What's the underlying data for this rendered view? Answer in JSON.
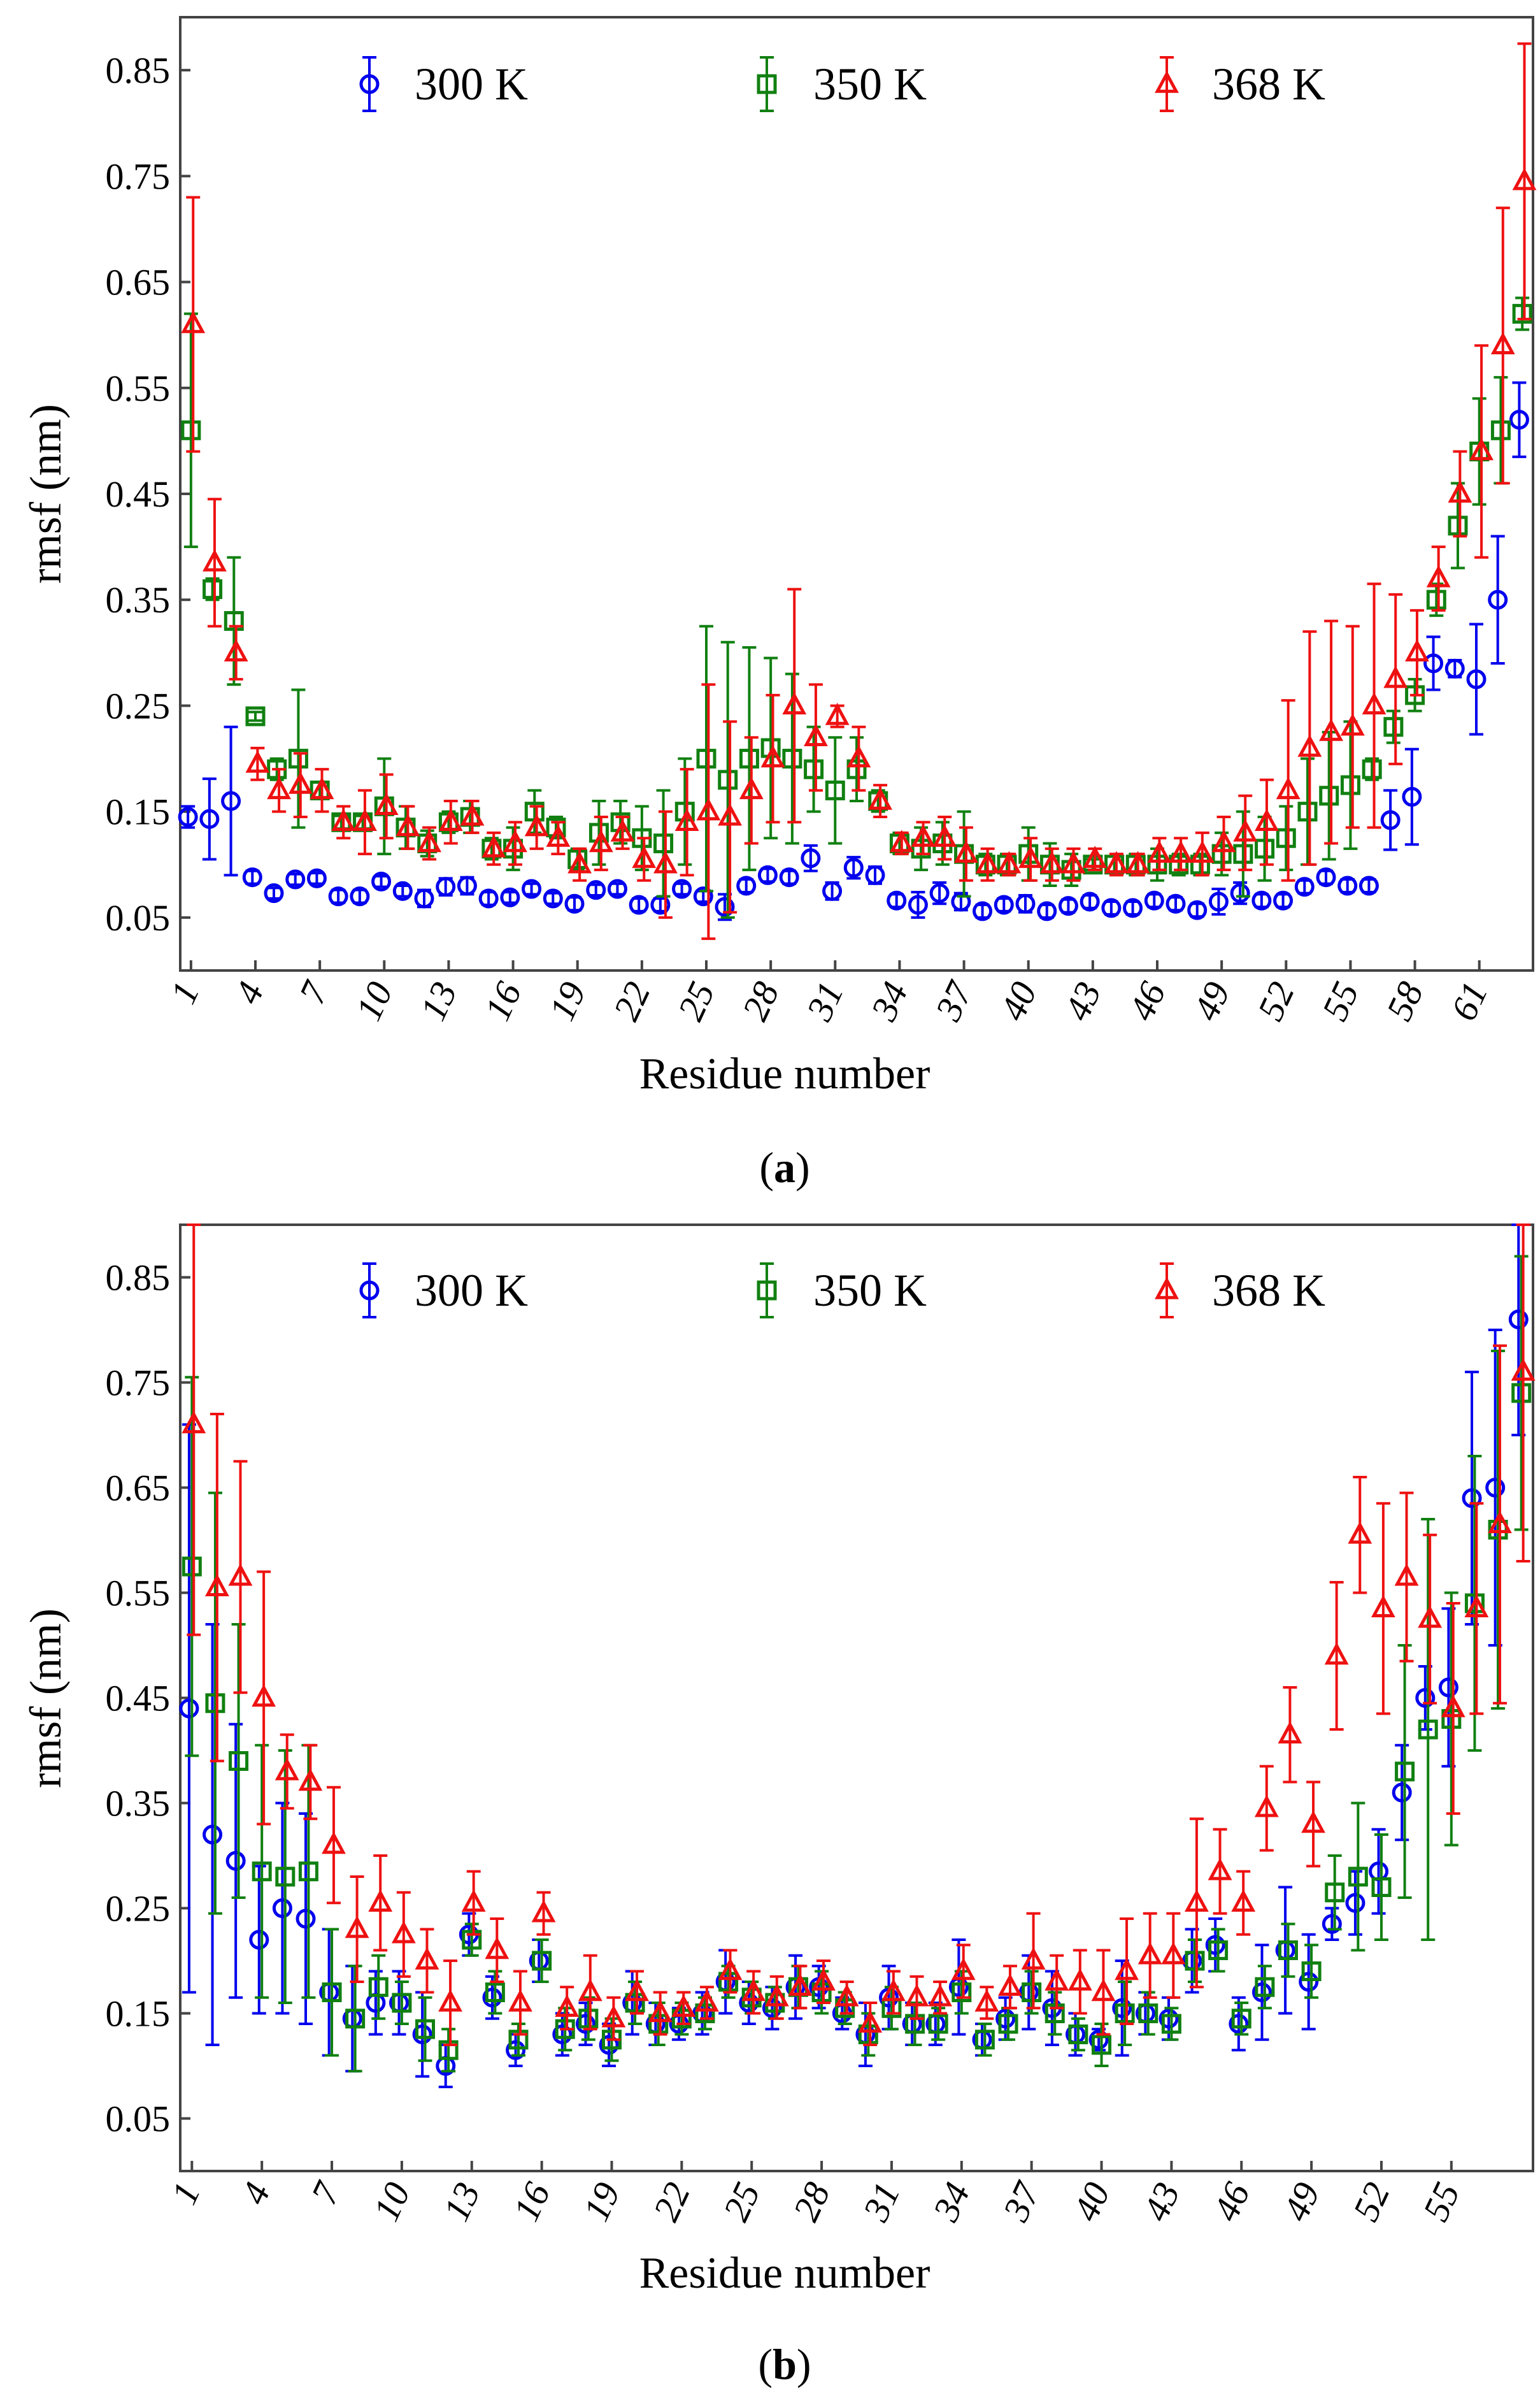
{
  "colors": {
    "s300": "#0000ee",
    "s350": "#118011",
    "s368": "#ee1111",
    "axis": "#444444"
  },
  "chart_data": [
    {
      "type": "scatter",
      "panel_label": {
        "open": "(",
        "letter": "a",
        "close": ")"
      },
      "xlabel": "Residue number",
      "ylabel": "rmsf (nm)",
      "ylim": [
        0.0,
        0.9
      ],
      "xlim": [
        0.5,
        63.5
      ],
      "ytick_values": [
        0.05,
        0.15,
        0.25,
        0.35,
        0.45,
        0.55,
        0.65,
        0.75,
        0.85
      ],
      "ytick_labels": [
        "0.05",
        "0.15",
        "0.25",
        "0.35",
        "0.45",
        "0.55",
        "0.65",
        "0.75",
        "0.85"
      ],
      "xtick_values": [
        1,
        4,
        7,
        10,
        13,
        16,
        19,
        22,
        25,
        28,
        31,
        34,
        37,
        40,
        43,
        46,
        49,
        52,
        55,
        58,
        61
      ],
      "xtick_labels": [
        "1",
        "4",
        "7",
        "10",
        "13",
        "16",
        "19",
        "22",
        "25",
        "28",
        "31",
        "34",
        "37",
        "40",
        "43",
        "46",
        "49",
        "52",
        "55",
        "58",
        "61"
      ],
      "legend_position": "top",
      "series": [
        {
          "name": "300 K",
          "marker": "circle",
          "color_key": "s300",
          "values": [
            0.145,
            0.143,
            0.16,
            0.088,
            0.073,
            0.086,
            0.087,
            0.07,
            0.07,
            0.084,
            0.075,
            0.068,
            0.079,
            0.08,
            0.068,
            0.069,
            0.077,
            0.068,
            0.063,
            0.076,
            0.077,
            0.062,
            0.062,
            0.077,
            0.07,
            0.06,
            0.08,
            0.09,
            0.088,
            0.106,
            0.075,
            0.097,
            0.09,
            0.066,
            0.062,
            0.073,
            0.065,
            0.056,
            0.062,
            0.063,
            0.056,
            0.061,
            0.065,
            0.059,
            0.059,
            0.066,
            0.063,
            0.057,
            0.065,
            0.073,
            0.066,
            0.066,
            0.079,
            0.088,
            0.08,
            0.08,
            0.142,
            0.164,
            0.29,
            0.285,
            0.275,
            0.35,
            0.52
          ],
          "errors": [
            0.01,
            0.038,
            0.07,
            0.006,
            0.005,
            0.005,
            0.005,
            0.006,
            0.006,
            0.005,
            0.005,
            0.008,
            0.008,
            0.008,
            0.006,
            0.005,
            0.005,
            0.005,
            0.006,
            0.005,
            0.005,
            0.006,
            0.006,
            0.005,
            0.005,
            0.012,
            0.006,
            0.006,
            0.006,
            0.012,
            0.008,
            0.01,
            0.008,
            0.006,
            0.012,
            0.01,
            0.008,
            0.006,
            0.006,
            0.008,
            0.006,
            0.006,
            0.006,
            0.006,
            0.006,
            0.006,
            0.006,
            0.006,
            0.012,
            0.01,
            0.006,
            0.006,
            0.006,
            0.006,
            0.006,
            0.006,
            0.028,
            0.045,
            0.025,
            0.008,
            0.052,
            0.06,
            0.035
          ]
        },
        {
          "name": "350 K",
          "marker": "square",
          "color_key": "s350",
          "values": [
            0.51,
            0.36,
            0.33,
            0.24,
            0.19,
            0.2,
            0.17,
            0.14,
            0.14,
            0.155,
            0.135,
            0.12,
            0.14,
            0.145,
            0.115,
            0.115,
            0.15,
            0.135,
            0.105,
            0.13,
            0.14,
            0.125,
            0.12,
            0.15,
            0.2,
            0.18,
            0.2,
            0.21,
            0.2,
            0.19,
            0.17,
            0.19,
            0.16,
            0.12,
            0.115,
            0.12,
            0.11,
            0.1,
            0.1,
            0.11,
            0.1,
            0.095,
            0.1,
            0.1,
            0.1,
            0.1,
            0.1,
            0.1,
            0.11,
            0.11,
            0.115,
            0.125,
            0.15,
            0.165,
            0.175,
            0.19,
            0.23,
            0.26,
            0.35,
            0.42,
            0.49,
            0.51,
            0.62
          ],
          "errors": [
            0.11,
            0.01,
            0.06,
            0.004,
            0.01,
            0.065,
            0.008,
            0.006,
            0.006,
            0.045,
            0.02,
            0.012,
            0.01,
            0.015,
            0.01,
            0.02,
            0.02,
            0.01,
            0.01,
            0.03,
            0.02,
            0.03,
            0.05,
            0.05,
            0.125,
            0.13,
            0.105,
            0.085,
            0.08,
            0.04,
            0.05,
            0.03,
            0.01,
            0.01,
            0.02,
            0.02,
            0.04,
            0.01,
            0.01,
            0.025,
            0.02,
            0.015,
            0.005,
            0.008,
            0.01,
            0.015,
            0.01,
            0.01,
            0.02,
            0.04,
            0.03,
            0.03,
            0.05,
            0.06,
            0.06,
            0.01,
            0.015,
            0.015,
            0.015,
            0.04,
            0.05,
            0.05,
            0.015
          ]
        },
        {
          "name": "368 K",
          "marker": "triangle",
          "color_key": "s368",
          "values": [
            0.61,
            0.385,
            0.3,
            0.195,
            0.17,
            0.175,
            0.17,
            0.14,
            0.14,
            0.155,
            0.135,
            0.12,
            0.14,
            0.145,
            0.115,
            0.12,
            0.135,
            0.125,
            0.1,
            0.12,
            0.13,
            0.105,
            0.1,
            0.14,
            0.15,
            0.145,
            0.17,
            0.2,
            0.25,
            0.22,
            0.24,
            0.2,
            0.16,
            0.12,
            0.125,
            0.125,
            0.11,
            0.1,
            0.1,
            0.105,
            0.1,
            0.1,
            0.105,
            0.1,
            0.1,
            0.11,
            0.11,
            0.11,
            0.12,
            0.13,
            0.14,
            0.17,
            0.21,
            0.225,
            0.23,
            0.25,
            0.275,
            0.3,
            0.37,
            0.45,
            0.49,
            0.59,
            0.745
          ],
          "errors": [
            0.12,
            0.06,
            0.025,
            0.015,
            0.02,
            0.03,
            0.02,
            0.015,
            0.03,
            0.03,
            0.02,
            0.015,
            0.02,
            0.015,
            0.015,
            0.02,
            0.02,
            0.015,
            0.015,
            0.025,
            0.015,
            0.02,
            0.05,
            0.05,
            0.12,
            0.09,
            0.05,
            0.06,
            0.11,
            0.05,
            0.01,
            0.03,
            0.015,
            0.01,
            0.015,
            0.02,
            0.025,
            0.015,
            0.01,
            0.02,
            0.015,
            0.015,
            0.01,
            0.01,
            0.01,
            0.015,
            0.015,
            0.02,
            0.025,
            0.035,
            0.04,
            0.085,
            0.11,
            0.105,
            0.095,
            0.115,
            0.08,
            0.04,
            0.03,
            0.04,
            0.1,
            0.13,
            0.13
          ]
        }
      ]
    },
    {
      "type": "scatter",
      "panel_label": {
        "open": "(",
        "letter": "b",
        "close": ")"
      },
      "xlabel": "Residue number",
      "ylabel": "rmsf (nm)",
      "ylim": [
        0.0,
        0.9
      ],
      "xlim": [
        0.5,
        58.5
      ],
      "ytick_values": [
        0.05,
        0.15,
        0.25,
        0.35,
        0.45,
        0.55,
        0.65,
        0.75,
        0.85
      ],
      "ytick_labels": [
        "0.05",
        "0.15",
        "0.25",
        "0.35",
        "0.45",
        "0.55",
        "0.65",
        "0.75",
        "0.85"
      ],
      "xtick_values": [
        1,
        4,
        7,
        10,
        13,
        16,
        19,
        22,
        25,
        28,
        31,
        34,
        37,
        40,
        43,
        46,
        49,
        52,
        55
      ],
      "xtick_labels": [
        "1",
        "4",
        "7",
        "10",
        "13",
        "16",
        "19",
        "22",
        "25",
        "28",
        "31",
        "34",
        "37",
        "40",
        "43",
        "46",
        "49",
        "52",
        "55"
      ],
      "legend_position": "top",
      "series": [
        {
          "name": "300 K",
          "marker": "circle",
          "color_key": "s300",
          "values": [
            0.44,
            0.32,
            0.295,
            0.22,
            0.25,
            0.24,
            0.17,
            0.145,
            0.16,
            0.16,
            0.13,
            0.1,
            0.225,
            0.165,
            0.115,
            0.2,
            0.13,
            0.14,
            0.12,
            0.16,
            0.14,
            0.14,
            0.15,
            0.18,
            0.16,
            0.155,
            0.175,
            0.175,
            0.15,
            0.13,
            0.165,
            0.14,
            0.14,
            0.175,
            0.125,
            0.145,
            0.17,
            0.155,
            0.13,
            0.125,
            0.155,
            0.15,
            0.145,
            0.2,
            0.215,
            0.14,
            0.17,
            0.21,
            0.18,
            0.235,
            0.255,
            0.285,
            0.36,
            0.45,
            0.46,
            0.64,
            0.65,
            0.81
          ],
          "errors": [
            0.27,
            0.2,
            0.13,
            0.07,
            0.1,
            0.1,
            0.06,
            0.05,
            0.03,
            0.03,
            0.04,
            0.02,
            0.02,
            0.02,
            0.015,
            0.02,
            0.02,
            0.02,
            0.02,
            0.03,
            0.02,
            0.015,
            0.02,
            0.03,
            0.02,
            0.02,
            0.03,
            0.02,
            0.015,
            0.03,
            0.03,
            0.02,
            0.02,
            0.045,
            0.015,
            0.02,
            0.035,
            0.035,
            0.02,
            0.01,
            0.045,
            0.02,
            0.02,
            0.03,
            0.025,
            0.025,
            0.045,
            0.06,
            0.045,
            0.015,
            0.03,
            0.04,
            0.045,
            0.03,
            0.075,
            0.12,
            0.15,
            0.11
          ]
        },
        {
          "name": "350 K",
          "marker": "square",
          "color_key": "s350",
          "values": [
            0.575,
            0.445,
            0.39,
            0.285,
            0.28,
            0.285,
            0.17,
            0.145,
            0.175,
            0.16,
            0.135,
            0.115,
            0.22,
            0.17,
            0.125,
            0.2,
            0.135,
            0.145,
            0.125,
            0.16,
            0.14,
            0.145,
            0.15,
            0.18,
            0.165,
            0.16,
            0.175,
            0.17,
            0.155,
            0.13,
            0.155,
            0.14,
            0.14,
            0.17,
            0.125,
            0.14,
            0.17,
            0.15,
            0.13,
            0.12,
            0.15,
            0.15,
            0.14,
            0.2,
            0.21,
            0.145,
            0.175,
            0.21,
            0.19,
            0.265,
            0.28,
            0.27,
            0.38,
            0.42,
            0.43,
            0.54,
            0.61,
            0.74
          ],
          "errors": [
            0.18,
            0.2,
            0.13,
            0.12,
            0.12,
            0.12,
            0.06,
            0.05,
            0.03,
            0.02,
            0.03,
            0.02,
            0.015,
            0.02,
            0.015,
            0.02,
            0.02,
            0.02,
            0.02,
            0.02,
            0.02,
            0.015,
            0.015,
            0.015,
            0.015,
            0.015,
            0.02,
            0.02,
            0.015,
            0.02,
            0.02,
            0.02,
            0.015,
            0.02,
            0.015,
            0.015,
            0.02,
            0.02,
            0.015,
            0.02,
            0.03,
            0.02,
            0.015,
            0.02,
            0.02,
            0.015,
            0.02,
            0.025,
            0.025,
            0.035,
            0.07,
            0.05,
            0.12,
            0.2,
            0.12,
            0.14,
            0.17,
            0.13
          ]
        },
        {
          "name": "368 K",
          "marker": "triangle",
          "color_key": "s368",
          "values": [
            0.71,
            0.555,
            0.565,
            0.45,
            0.38,
            0.37,
            0.31,
            0.23,
            0.255,
            0.225,
            0.2,
            0.16,
            0.255,
            0.21,
            0.16,
            0.245,
            0.155,
            0.17,
            0.145,
            0.17,
            0.15,
            0.155,
            0.16,
            0.19,
            0.17,
            0.165,
            0.175,
            0.18,
            0.165,
            0.14,
            0.17,
            0.165,
            0.165,
            0.19,
            0.16,
            0.175,
            0.2,
            0.18,
            0.18,
            0.17,
            0.19,
            0.205,
            0.205,
            0.255,
            0.285,
            0.255,
            0.345,
            0.415,
            0.33,
            0.49,
            0.605,
            0.535,
            0.565,
            0.525,
            0.44,
            0.535,
            0.615,
            0.76
          ],
          "errors": [
            0.2,
            0.165,
            0.11,
            0.12,
            0.035,
            0.035,
            0.055,
            0.05,
            0.045,
            0.04,
            0.03,
            0.04,
            0.03,
            0.03,
            0.03,
            0.02,
            0.02,
            0.035,
            0.02,
            0.02,
            0.02,
            0.015,
            0.015,
            0.02,
            0.02,
            0.02,
            0.02,
            0.02,
            0.015,
            0.02,
            0.02,
            0.02,
            0.015,
            0.025,
            0.015,
            0.02,
            0.045,
            0.025,
            0.03,
            0.04,
            0.05,
            0.04,
            0.04,
            0.08,
            0.04,
            0.03,
            0.04,
            0.045,
            0.04,
            0.07,
            0.055,
            0.1,
            0.08,
            0.08,
            0.1,
            0.1,
            0.17,
            0.18
          ]
        }
      ]
    }
  ]
}
